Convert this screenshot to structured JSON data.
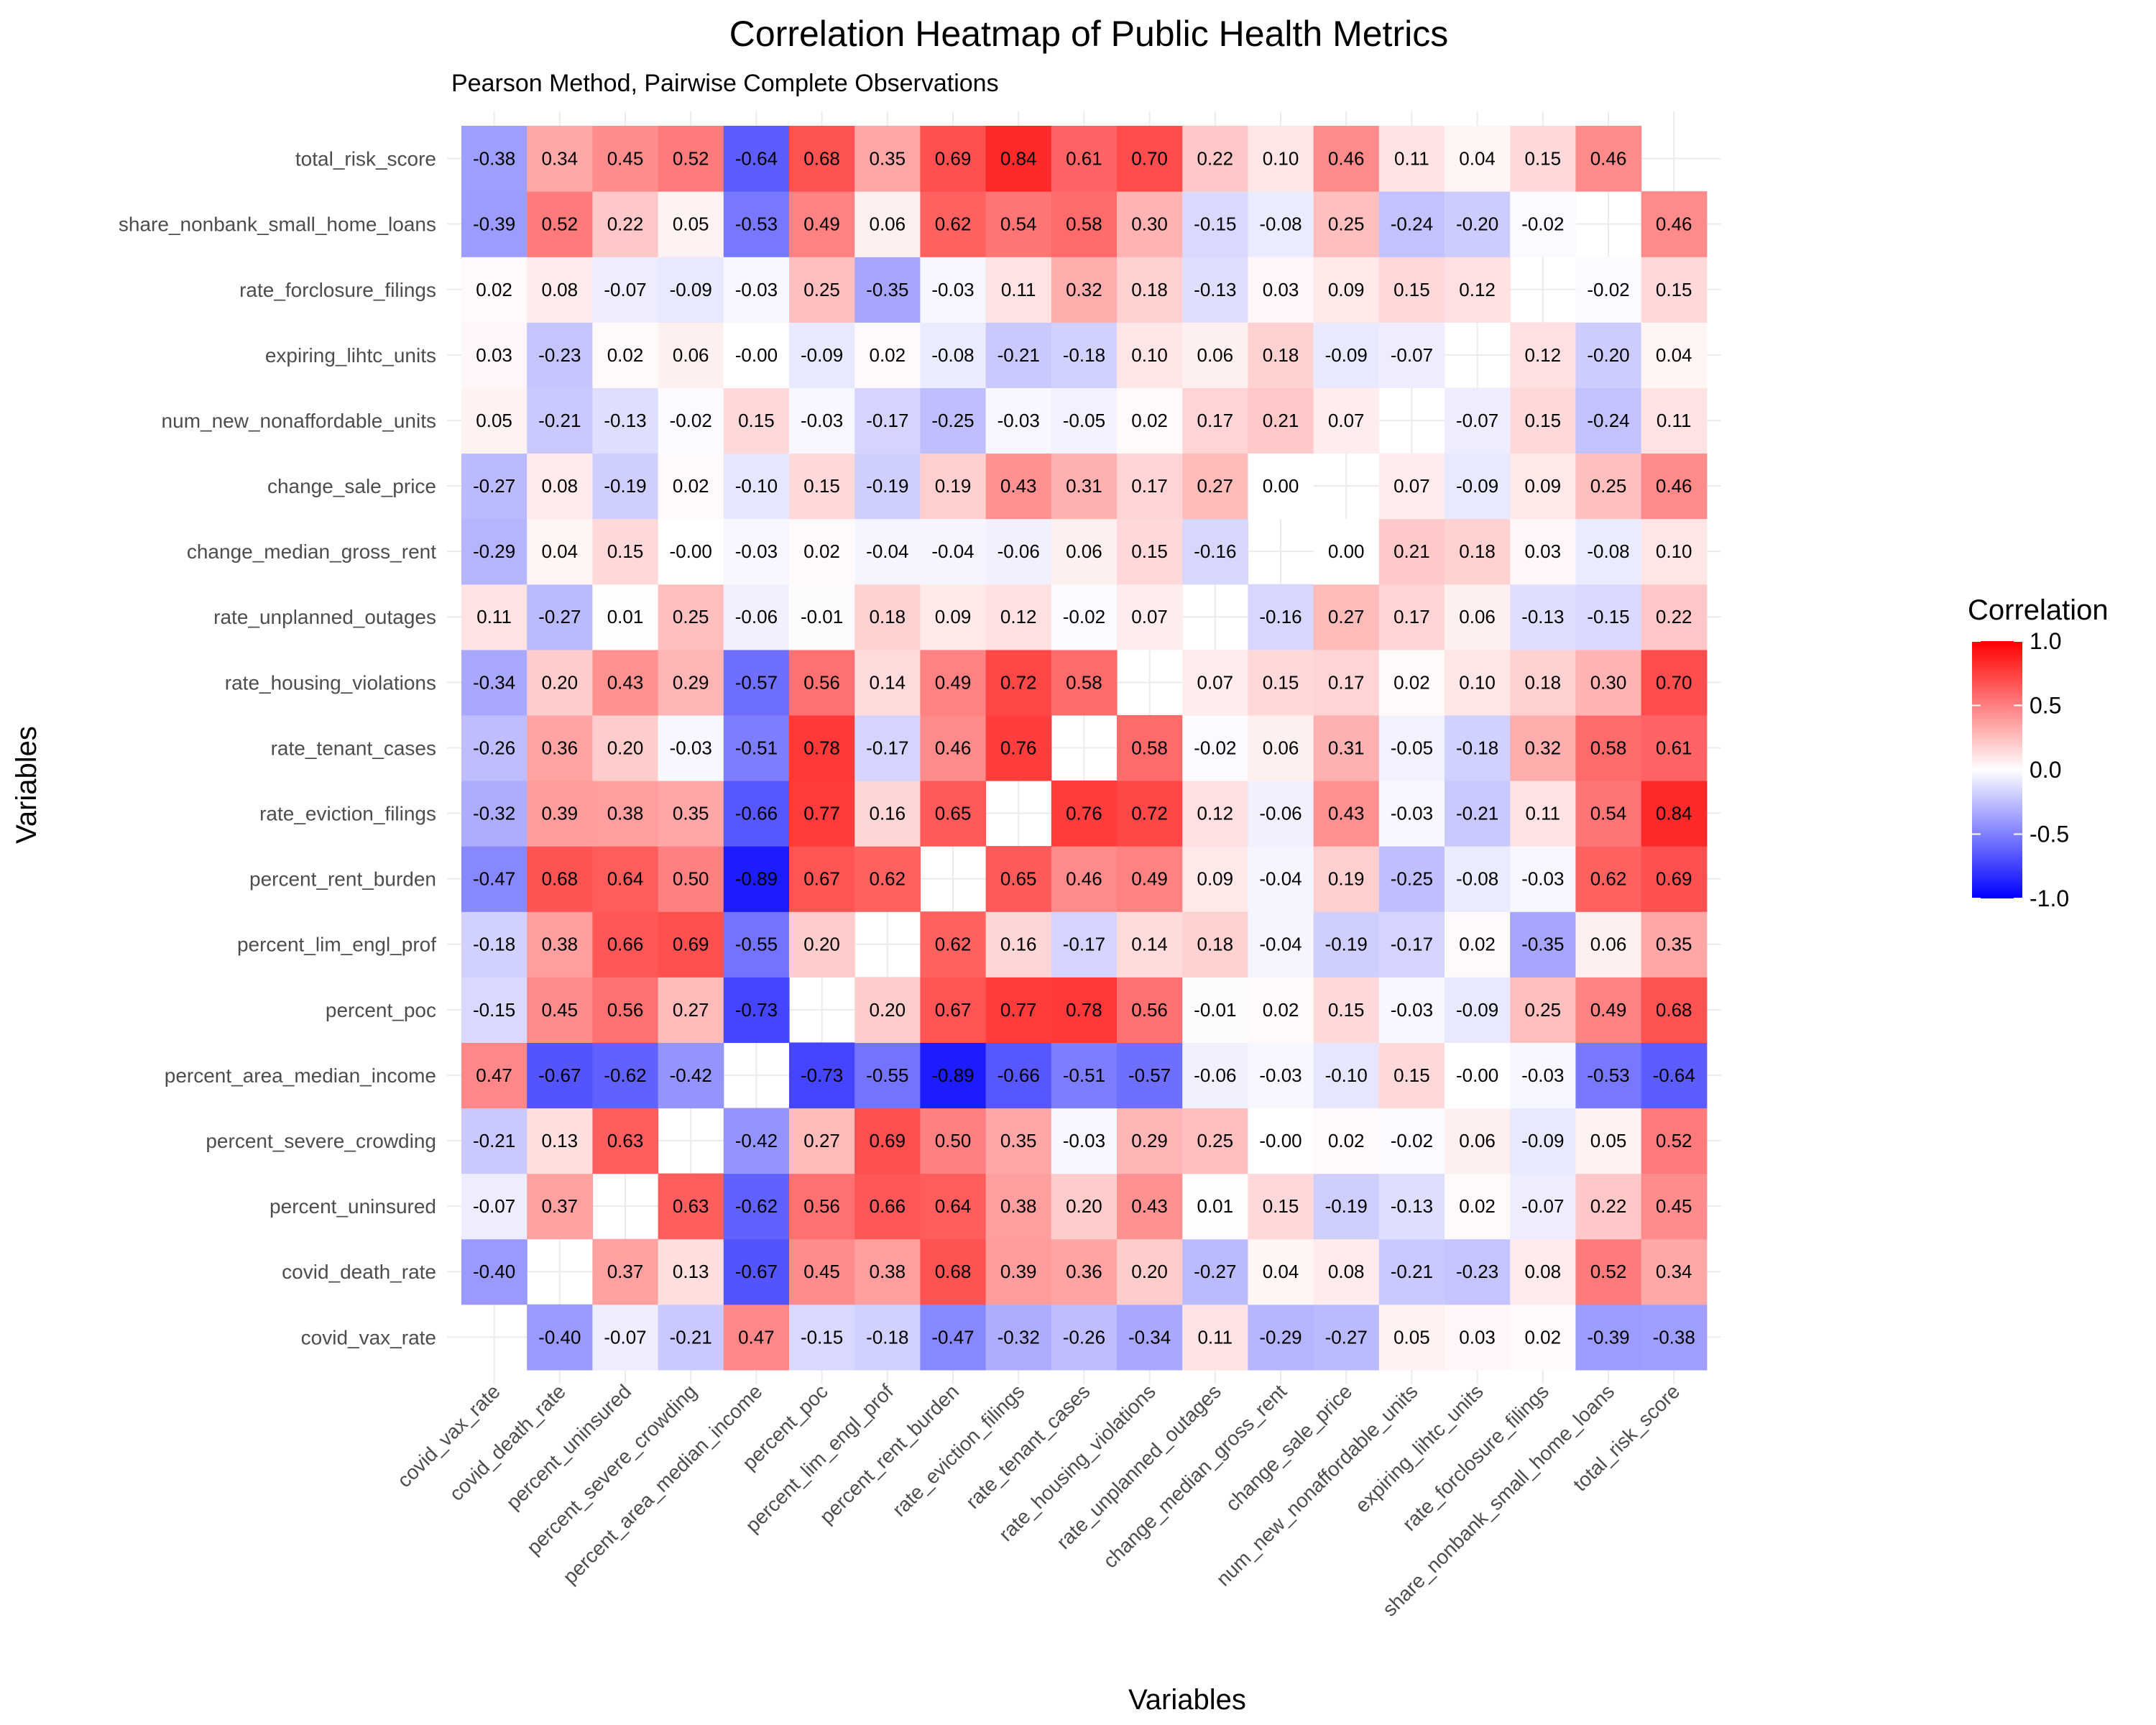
{
  "chart_data": {
    "type": "heatmap",
    "title": "Correlation Heatmap of Public Health Metrics",
    "subtitle": "Pearson Method, Pairwise Complete Observations",
    "xlabel": "Variables",
    "ylabel": "Variables",
    "legend": {
      "title": "Correlation",
      "placement": "right",
      "ticks": [
        "1.0",
        "0.5",
        "0.0",
        "-0.5",
        "-1.0"
      ],
      "tick_values": [
        1.0,
        0.5,
        0.0,
        -0.5,
        -1.0
      ],
      "range": [
        -1,
        1
      ]
    },
    "colors": {
      "low": "#0000ff",
      "mid": "#ffffff",
      "high": "#ff0000"
    },
    "variables": [
      "covid_vax_rate",
      "covid_death_rate",
      "percent_uninsured",
      "percent_severe_crowding",
      "percent_area_median_income",
      "percent_poc",
      "percent_lim_engl_prof",
      "percent_rent_burden",
      "rate_eviction_filings",
      "rate_tenant_cases",
      "rate_housing_violations",
      "rate_unplanned_outages",
      "change_median_gross_rent",
      "change_sale_price",
      "num_new_nonaffordable_units",
      "expiring_lihtc_units",
      "rate_forclosure_filings",
      "share_nonbank_small_home_loans",
      "total_risk_score"
    ],
    "matrix": [
      [
        null,
        "-0.40",
        "-0.07",
        "-0.21",
        "0.47",
        "-0.15",
        "-0.18",
        "-0.47",
        "-0.32",
        "-0.26",
        "-0.34",
        "0.11",
        "-0.29",
        "-0.27",
        "0.05",
        "0.03",
        "0.02",
        "-0.39",
        "-0.38"
      ],
      [
        "-0.40",
        null,
        "0.37",
        "0.13",
        "-0.67",
        "0.45",
        "0.38",
        "0.68",
        "0.39",
        "0.36",
        "0.20",
        "-0.27",
        "0.04",
        "0.08",
        "-0.21",
        "-0.23",
        "0.08",
        "0.52",
        "0.34"
      ],
      [
        "-0.07",
        "0.37",
        null,
        "0.63",
        "-0.62",
        "0.56",
        "0.66",
        "0.64",
        "0.38",
        "0.20",
        "0.43",
        "0.01",
        "0.15",
        "-0.19",
        "-0.13",
        "0.02",
        "-0.07",
        "0.22",
        "0.45"
      ],
      [
        "-0.21",
        "0.13",
        "0.63",
        null,
        "-0.42",
        "0.27",
        "0.69",
        "0.50",
        "0.35",
        "-0.03",
        "0.29",
        "0.25",
        "-0.00",
        "0.02",
        "-0.02",
        "0.06",
        "-0.09",
        "0.05",
        "0.52"
      ],
      [
        "0.47",
        "-0.67",
        "-0.62",
        "-0.42",
        null,
        "-0.73",
        "-0.55",
        "-0.89",
        "-0.66",
        "-0.51",
        "-0.57",
        "-0.06",
        "-0.03",
        "-0.10",
        "0.15",
        "-0.00",
        "-0.03",
        "-0.53",
        "-0.64"
      ],
      [
        "-0.15",
        "0.45",
        "0.56",
        "0.27",
        "-0.73",
        null,
        "0.20",
        "0.67",
        "0.77",
        "0.78",
        "0.56",
        "-0.01",
        "0.02",
        "0.15",
        "-0.03",
        "-0.09",
        "0.25",
        "0.49",
        "0.68"
      ],
      [
        "-0.18",
        "0.38",
        "0.66",
        "0.69",
        "-0.55",
        "0.20",
        null,
        "0.62",
        "0.16",
        "-0.17",
        "0.14",
        "0.18",
        "-0.04",
        "-0.19",
        "-0.17",
        "0.02",
        "-0.35",
        "0.06",
        "0.35"
      ],
      [
        "-0.47",
        "0.68",
        "0.64",
        "0.50",
        "-0.89",
        "0.67",
        "0.62",
        null,
        "0.65",
        "0.46",
        "0.49",
        "0.09",
        "-0.04",
        "0.19",
        "-0.25",
        "-0.08",
        "-0.03",
        "0.62",
        "0.69"
      ],
      [
        "-0.32",
        "0.39",
        "0.38",
        "0.35",
        "-0.66",
        "0.77",
        "0.16",
        "0.65",
        null,
        "0.76",
        "0.72",
        "0.12",
        "-0.06",
        "0.43",
        "-0.03",
        "-0.21",
        "0.11",
        "0.54",
        "0.84"
      ],
      [
        "-0.26",
        "0.36",
        "0.20",
        "-0.03",
        "-0.51",
        "0.78",
        "-0.17",
        "0.46",
        "0.76",
        null,
        "0.58",
        "-0.02",
        "0.06",
        "0.31",
        "-0.05",
        "-0.18",
        "0.32",
        "0.58",
        "0.61"
      ],
      [
        "-0.34",
        "0.20",
        "0.43",
        "0.29",
        "-0.57",
        "0.56",
        "0.14",
        "0.49",
        "0.72",
        "0.58",
        null,
        "0.07",
        "0.15",
        "0.17",
        "0.02",
        "0.10",
        "0.18",
        "0.30",
        "0.70"
      ],
      [
        "0.11",
        "-0.27",
        "0.01",
        "0.25",
        "-0.06",
        "-0.01",
        "0.18",
        "0.09",
        "0.12",
        "-0.02",
        "0.07",
        null,
        "-0.16",
        "0.27",
        "0.17",
        "0.06",
        "-0.13",
        "-0.15",
        "0.22"
      ],
      [
        "-0.29",
        "0.04",
        "0.15",
        "-0.00",
        "-0.03",
        "0.02",
        "-0.04",
        "-0.04",
        "-0.06",
        "0.06",
        "0.15",
        "-0.16",
        null,
        "0.00",
        "0.21",
        "0.18",
        "0.03",
        "-0.08",
        "0.10"
      ],
      [
        "-0.27",
        "0.08",
        "-0.19",
        "0.02",
        "-0.10",
        "0.15",
        "-0.19",
        "0.19",
        "0.43",
        "0.31",
        "0.17",
        "0.27",
        "0.00",
        null,
        "0.07",
        "-0.09",
        "0.09",
        "0.25",
        "0.46"
      ],
      [
        "0.05",
        "-0.21",
        "-0.13",
        "-0.02",
        "0.15",
        "-0.03",
        "-0.17",
        "-0.25",
        "-0.03",
        "-0.05",
        "0.02",
        "0.17",
        "0.21",
        "0.07",
        null,
        "-0.07",
        "0.15",
        "-0.24",
        "0.11"
      ],
      [
        "0.03",
        "-0.23",
        "0.02",
        "0.06",
        "-0.00",
        "-0.09",
        "0.02",
        "-0.08",
        "-0.21",
        "-0.18",
        "0.10",
        "0.06",
        "0.18",
        "-0.09",
        "-0.07",
        null,
        "0.12",
        "-0.20",
        "0.04"
      ],
      [
        "0.02",
        "0.08",
        "-0.07",
        "-0.09",
        "-0.03",
        "0.25",
        "-0.35",
        "-0.03",
        "0.11",
        "0.32",
        "0.18",
        "-0.13",
        "0.03",
        "0.09",
        "0.15",
        "0.12",
        null,
        "-0.02",
        "0.15"
      ],
      [
        "-0.39",
        "0.52",
        "0.22",
        "0.05",
        "-0.53",
        "0.49",
        "0.06",
        "0.62",
        "0.54",
        "0.58",
        "0.30",
        "-0.15",
        "-0.08",
        "0.25",
        "-0.24",
        "-0.20",
        "-0.02",
        null,
        "0.46"
      ],
      [
        "-0.38",
        "0.34",
        "0.45",
        "0.52",
        "-0.64",
        "0.68",
        "0.35",
        "0.69",
        "0.84",
        "0.61",
        "0.70",
        "0.22",
        "0.10",
        "0.46",
        "0.11",
        "0.04",
        "0.15",
        "0.46",
        null
      ]
    ]
  }
}
